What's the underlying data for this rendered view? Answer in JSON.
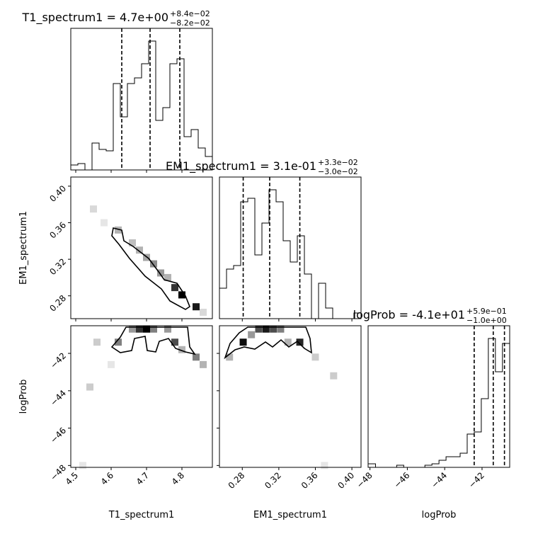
{
  "chart_data": {
    "type": "corner",
    "params": [
      {
        "name": "T1_spectrum1",
        "title": "T1_spectrum1 = 4.7e+00",
        "title_plus": "+8.4e−02",
        "title_minus": "−8.2e−02",
        "xlim": [
          4.486,
          4.886
        ],
        "ticks": [
          4.5,
          4.6,
          4.7,
          4.8
        ],
        "bins": [
          4.486,
          4.506,
          4.526,
          4.546,
          4.566,
          4.586,
          4.606,
          4.626,
          4.646,
          4.666,
          4.686,
          4.706,
          4.726,
          4.746,
          4.766,
          4.786,
          4.806,
          4.826,
          4.846,
          4.866,
          4.886
        ],
        "counts": [
          7,
          9,
          0,
          38,
          29,
          27,
          122,
          75,
          122,
          130,
          150,
          182,
          70,
          88,
          150,
          157,
          47,
          57,
          31,
          19
        ],
        "hist_ylim": [
          0,
          200
        ],
        "quantiles": [
          4.63,
          4.71,
          4.794
        ]
      },
      {
        "name": "EM1_spectrum1",
        "title": "EM1_spectrum1 = 3.1e-01",
        "title_plus": "+3.3e−02",
        "title_minus": "−3.0e−02",
        "xlim": [
          0.255,
          0.41
        ],
        "ticks": [
          0.28,
          0.32,
          0.36,
          {
            "value": 0.4,
            "label": "0.40"
          }
        ],
        "bins": [
          0.255,
          0.26275,
          0.2705,
          0.27825,
          0.286,
          0.29375,
          0.3015,
          0.30925,
          0.317,
          0.32475,
          0.3325,
          0.34025,
          0.348,
          0.35575,
          0.3635,
          0.37125,
          0.379,
          0.38675,
          0.3945,
          0.40225,
          0.41
        ],
        "counts": [
          43,
          70,
          75,
          165,
          170,
          90,
          135,
          182,
          165,
          110,
          80,
          117,
          63,
          0,
          50,
          15,
          0,
          0,
          0,
          8
        ],
        "hist_ylim": [
          0,
          200
        ],
        "quantiles": [
          0.281,
          0.31,
          0.343
        ]
      },
      {
        "name": "logProb",
        "title": "logProb = -4.1e+01",
        "title_plus": "+5.9e−01",
        "title_minus": "−1.0e+00",
        "xlim": [
          -48.1,
          -40.52
        ],
        "ticks": [
          {
            "value": -48,
            "label": "−48"
          },
          {
            "value": -46,
            "label": "−46"
          },
          {
            "value": -44,
            "label": "−44"
          },
          {
            "value": -42,
            "label": "−42"
          }
        ],
        "bins": [
          -48.08,
          -47.7025,
          -47.325,
          -46.9475,
          -46.57,
          -46.1925,
          -45.815,
          -45.4375,
          -45.06,
          -44.6825,
          -44.305,
          -43.9275,
          -43.55,
          -43.1725,
          -42.795,
          -42.4175,
          -42.04,
          -41.6625,
          -41.285,
          -40.9075,
          -40.53
        ],
        "counts": [
          5,
          0,
          0,
          0,
          3,
          0,
          0,
          0,
          3,
          5,
          10,
          15,
          15,
          20,
          47,
          50,
          97,
          182,
          135,
          175
        ],
        "hist_ylim": [
          0,
          200
        ],
        "quantiles": [
          -42.42,
          -41.4,
          -40.8
        ]
      }
    ],
    "pairs": [
      {
        "x": [
          4.8,
          4.78,
          4.76,
          4.74,
          4.72,
          4.7,
          4.68,
          4.66,
          4.62,
          4.84,
          4.55,
          4.58,
          4.86
        ],
        "y": [
          0.281,
          0.289,
          0.3,
          0.305,
          0.315,
          0.322,
          0.33,
          0.338,
          0.352,
          0.268,
          0.375,
          0.36,
          0.262
        ],
        "weight": [
          1,
          0.8,
          0.3,
          0.4,
          0.45,
          0.35,
          0.3,
          0.25,
          0.3,
          0.9,
          0.15,
          0.1,
          0.15
        ]
      },
      {
        "x": [
          4.7,
          4.68,
          4.66,
          4.72,
          4.76,
          4.78,
          4.62,
          4.56,
          4.8,
          4.84,
          4.86,
          4.54,
          4.52,
          4.6
        ],
        "y": [
          -40.7,
          -40.7,
          -40.7,
          -40.7,
          -40.7,
          -41.4,
          -41.4,
          -41.4,
          -41.8,
          -42.2,
          -42.6,
          -43.8,
          -48.0,
          -42.6
        ],
        "weight": [
          1,
          0.8,
          0.4,
          0.5,
          0.4,
          0.7,
          0.5,
          0.2,
          0.3,
          0.5,
          0.3,
          0.2,
          0.1,
          0.1
        ]
      },
      {
        "x": [
          0.281,
          0.298,
          0.306,
          0.314,
          0.322,
          0.343,
          0.29,
          0.33,
          0.266,
          0.36,
          0.38,
          0.37
        ],
        "y": [
          -41.4,
          -40.7,
          -40.7,
          -40.7,
          -40.7,
          -41.4,
          -41.0,
          -41.4,
          -42.2,
          -42.2,
          -43.2,
          -48.0
        ],
        "weight": [
          0.95,
          0.7,
          0.9,
          0.7,
          0.5,
          0.85,
          0.4,
          0.3,
          0.3,
          0.2,
          0.2,
          0.1
        ]
      }
    ]
  }
}
